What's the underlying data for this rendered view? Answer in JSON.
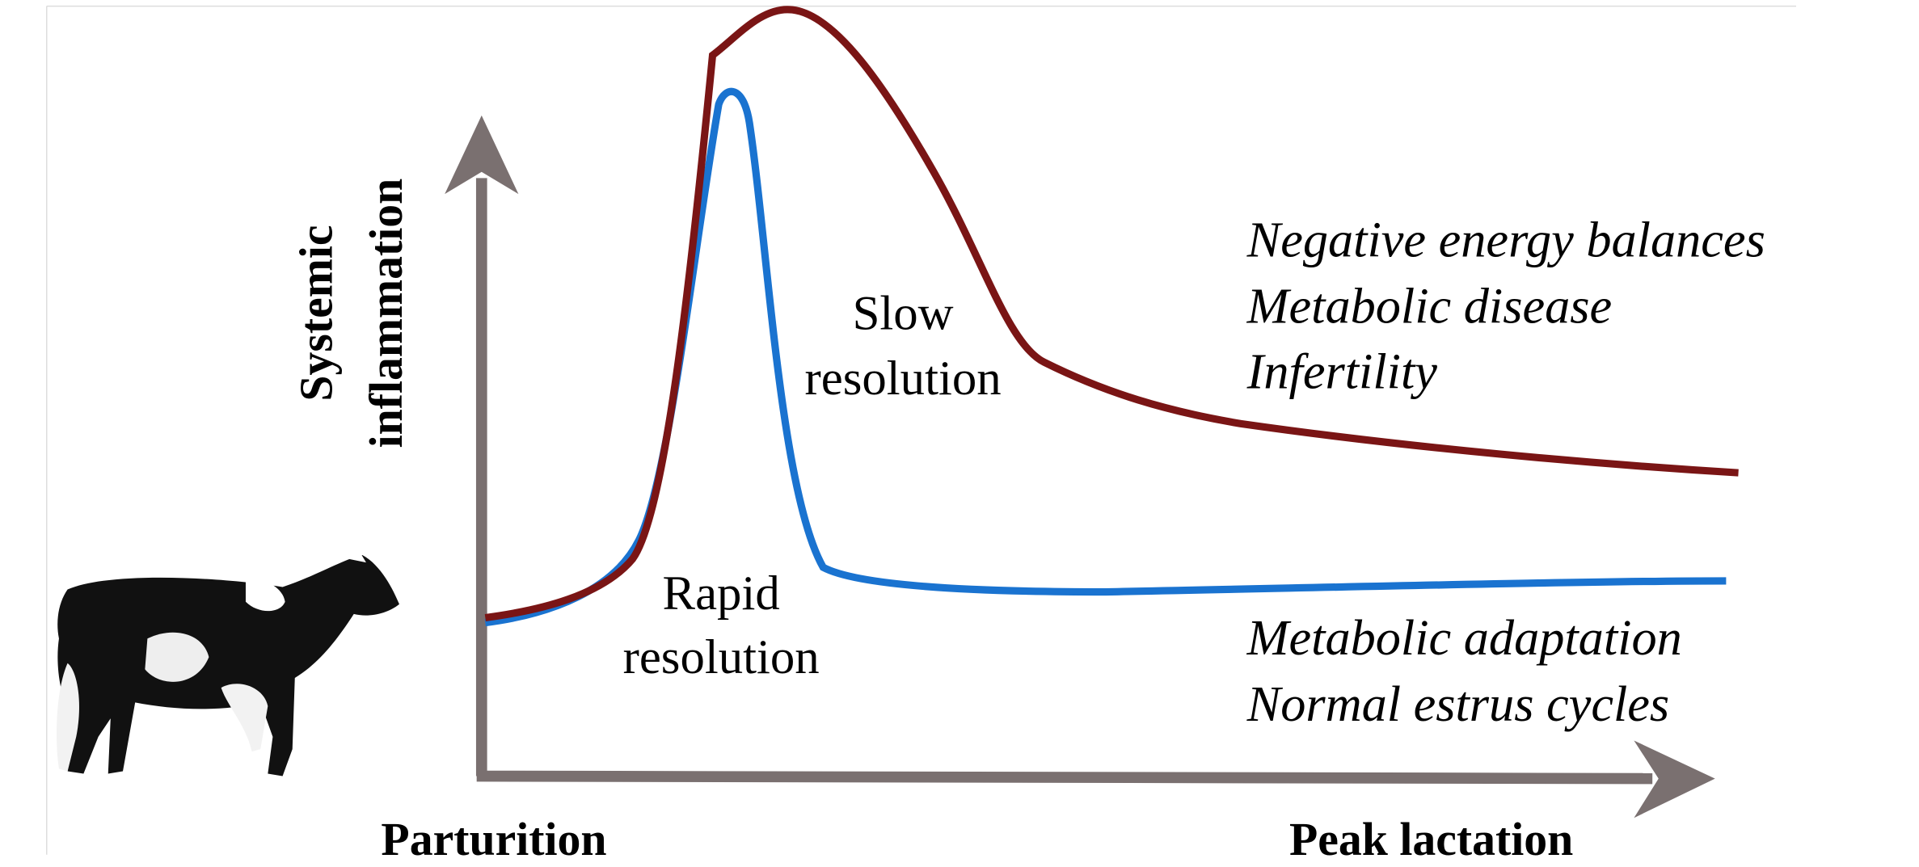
{
  "axes": {
    "y_label": [
      "Systemic",
      "inflammation"
    ],
    "x_start": "Parturition",
    "x_end": "Peak lactation"
  },
  "curves": {
    "slow": [
      "Slow",
      "resolution"
    ],
    "rapid": [
      "Rapid",
      "resolution"
    ]
  },
  "outcomes": {
    "slow": [
      "Negative energy balances",
      "Metabolic disease",
      "Infertility"
    ],
    "rapid": [
      "Metabolic adaptation",
      "Normal estrus cycles"
    ]
  }
}
